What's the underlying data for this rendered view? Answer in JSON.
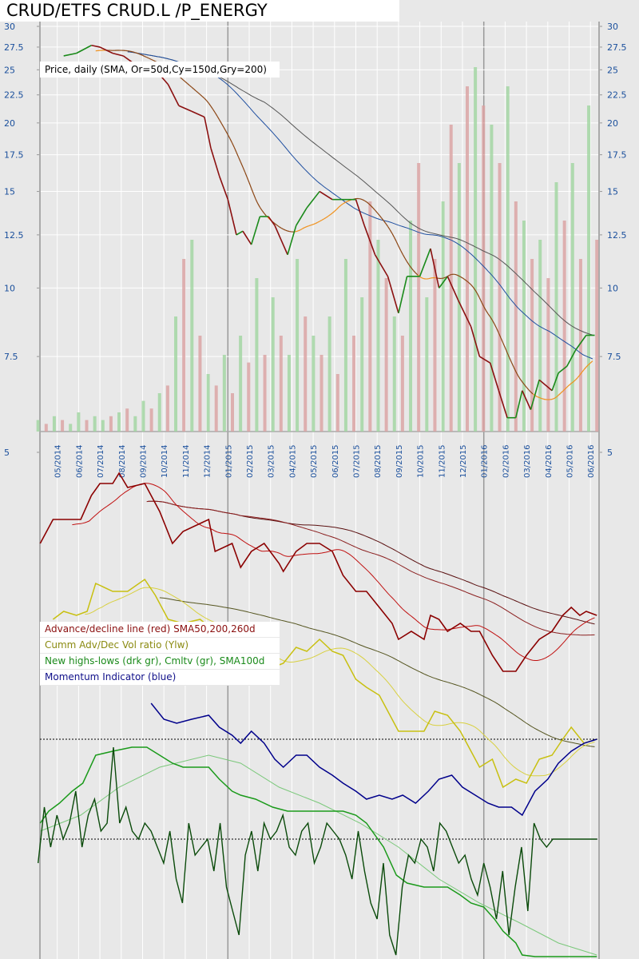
{
  "title": "CRUD/ETFS CRUD.L /P_ENERGY",
  "price_legend": "Price, daily (SMA, Or=50d,Cy=150d,Gry=200)",
  "lower_legend": [
    {
      "text": "Advance/decline line (red) SMA50,200,260d",
      "color": "#8b1010"
    },
    {
      "text": "Cumm Adv/Dec Vol ratio (Ylw)",
      "color": "#8a8a10"
    },
    {
      "text": "New highs-lows (drk gr), Cmltv (gr), SMA100d",
      "color": "#1a8a1a"
    },
    {
      "text": "Momentum Indicator (blue)",
      "color": "#10108a"
    }
  ],
  "colors": {
    "up": "#1a8a1a",
    "down": "#8b1010",
    "sma50_up": "#f0901a",
    "sma50_down": "#8b4513",
    "sma150": "#1f4fa0",
    "sma200": "#555555",
    "axis_text": "#1a4f9c",
    "ad": "#8b0000",
    "vol_ratio": "#c8c010",
    "hl": "#0a4a0a",
    "cum": "#1a9a1a",
    "cum_sma": "#7ac87a",
    "momentum": "#00008b"
  },
  "chart_data": {
    "type": "line",
    "title": "CRUD/ETFS CRUD.L /P_ENERGY",
    "x_unit": "months since 04/2014",
    "x_ticks": [
      "05/2014",
      "06/2014",
      "07/2014",
      "08/2014",
      "09/2014",
      "10/2014",
      "11/2014",
      "12/2014",
      "01/2015",
      "02/2015",
      "03/2015",
      "04/2015",
      "05/2015",
      "06/2015",
      "07/2015",
      "08/2015",
      "09/2015",
      "10/2015",
      "11/2015",
      "12/2015",
      "01/2016",
      "02/2016",
      "03/2016",
      "04/2016",
      "05/2016",
      "06/2016"
    ],
    "y_ticks_left": [
      "30",
      "27.5",
      "25",
      "22.5",
      "20",
      "17.5",
      "15",
      "12.5",
      "10",
      "7.5",
      "5"
    ],
    "y_ticks_right": [
      "30",
      "27.5",
      "25",
      "22.5",
      "20",
      "17.5",
      "15",
      "12.5",
      "10",
      "7.5",
      "5"
    ],
    "y_scale": "log",
    "ylim": [
      5,
      30
    ],
    "price": [
      [
        1.3,
        26.5
      ],
      [
        1.9,
        26.8
      ],
      [
        2.6,
        27.7
      ],
      [
        3.0,
        27.5
      ],
      [
        3.6,
        26.8
      ],
      [
        4.1,
        26.5
      ],
      [
        4.7,
        25.5
      ],
      [
        5.2,
        25
      ],
      [
        5.8,
        24.5
      ],
      [
        6.2,
        23.5
      ],
      [
        6.7,
        21.5
      ],
      [
        7.3,
        21
      ],
      [
        7.9,
        20.5
      ],
      [
        8.2,
        18
      ],
      [
        8.6,
        16
      ],
      [
        9.0,
        14.5
      ],
      [
        9.4,
        12.5
      ],
      [
        9.7,
        12.7
      ],
      [
        10.1,
        12
      ],
      [
        10.5,
        13.5
      ],
      [
        10.9,
        13.5
      ],
      [
        11.2,
        13
      ],
      [
        11.8,
        11.5
      ],
      [
        12.2,
        13
      ],
      [
        12.7,
        14
      ],
      [
        13.3,
        15
      ],
      [
        13.9,
        14.5
      ],
      [
        14.4,
        14.5
      ],
      [
        15.0,
        14.5
      ],
      [
        15.4,
        13
      ],
      [
        15.9,
        11.5
      ],
      [
        16.5,
        10.5
      ],
      [
        17.0,
        9
      ],
      [
        17.4,
        10.5
      ],
      [
        18.0,
        10.5
      ],
      [
        18.5,
        11.8
      ],
      [
        18.9,
        10
      ],
      [
        19.3,
        10.5
      ],
      [
        19.8,
        9.5
      ],
      [
        20.4,
        8.5
      ],
      [
        20.8,
        7.5
      ],
      [
        21.3,
        7.3
      ],
      [
        21.7,
        6.5
      ],
      [
        22.1,
        5.8
      ],
      [
        22.5,
        5.8
      ],
      [
        22.8,
        6.5
      ],
      [
        23.2,
        6
      ],
      [
        23.6,
        6.8
      ],
      [
        24.2,
        6.5
      ],
      [
        24.5,
        7
      ],
      [
        24.9,
        7.2
      ],
      [
        25.3,
        7.7
      ],
      [
        25.8,
        8.2
      ],
      [
        26.2,
        8.2
      ]
    ],
    "volume": [
      3,
      -2,
      4,
      -3,
      2,
      5,
      -3,
      4,
      3,
      -4,
      5,
      -6,
      4,
      8,
      -6,
      10,
      -12,
      30,
      -45,
      50,
      -25,
      15,
      -12,
      20,
      -10,
      25,
      -18,
      40,
      -20,
      35,
      -25,
      20,
      45,
      -30,
      25,
      -20,
      30,
      -15,
      45,
      -25,
      35,
      -60,
      50,
      -40,
      30,
      -25,
      55,
      -70,
      35,
      -45,
      60,
      -80,
      70,
      -90,
      95,
      -85,
      80,
      -70,
      90,
      -60,
      55,
      -45,
      50,
      -40,
      65,
      -55,
      70,
      -45,
      85,
      -50
    ],
    "lower_y_ticks": [
      "5"
    ],
    "advance_decline": [
      [
        0.2,
        42
      ],
      [
        0.8,
        45
      ],
      [
        1.3,
        45
      ],
      [
        2.1,
        45
      ],
      [
        2.6,
        48
      ],
      [
        3.0,
        49.5
      ],
      [
        3.6,
        49.5
      ],
      [
        3.9,
        50.8
      ],
      [
        4.3,
        49
      ],
      [
        5.1,
        49.5
      ],
      [
        5.8,
        46
      ],
      [
        6.4,
        42
      ],
      [
        6.9,
        43.5
      ],
      [
        7.7,
        44.5
      ],
      [
        8.1,
        45
      ],
      [
        8.4,
        41
      ],
      [
        9.2,
        42
      ],
      [
        9.6,
        39
      ],
      [
        10.1,
        41
      ],
      [
        10.7,
        42
      ],
      [
        11.4,
        39.5
      ],
      [
        11.6,
        38.5
      ],
      [
        12.2,
        41
      ],
      [
        12.7,
        42
      ],
      [
        13.3,
        42
      ],
      [
        13.9,
        41
      ],
      [
        14.4,
        38
      ],
      [
        15.0,
        36
      ],
      [
        15.5,
        36
      ],
      [
        16.1,
        34
      ],
      [
        16.7,
        32
      ],
      [
        17.0,
        30
      ],
      [
        17.6,
        31
      ],
      [
        18.2,
        30
      ],
      [
        18.5,
        33
      ],
      [
        18.9,
        32.5
      ],
      [
        19.3,
        31
      ],
      [
        19.9,
        32
      ],
      [
        20.4,
        31
      ],
      [
        20.8,
        31
      ],
      [
        21.4,
        28
      ],
      [
        21.9,
        26
      ],
      [
        22.5,
        26
      ],
      [
        23.0,
        28
      ],
      [
        23.6,
        30
      ],
      [
        24.2,
        31
      ],
      [
        24.7,
        33
      ],
      [
        25.1,
        34
      ],
      [
        25.5,
        33
      ],
      [
        25.8,
        33.5
      ],
      [
        26.3,
        33
      ]
    ],
    "vol_ratio": [
      [
        0.8,
        32.5
      ],
      [
        1.3,
        33.5
      ],
      [
        1.9,
        33
      ],
      [
        2.4,
        33.5
      ],
      [
        2.8,
        37
      ],
      [
        3.6,
        36
      ],
      [
        4.3,
        36
      ],
      [
        5.1,
        37.5
      ],
      [
        5.6,
        35.5
      ],
      [
        6.2,
        32.5
      ],
      [
        6.9,
        32
      ],
      [
        7.7,
        32.5
      ],
      [
        8.4,
        31
      ],
      [
        9.2,
        30
      ],
      [
        9.7,
        28
      ],
      [
        10.3,
        27
      ],
      [
        11.1,
        26.5
      ],
      [
        11.6,
        27
      ],
      [
        12.2,
        29
      ],
      [
        12.7,
        28.5
      ],
      [
        13.3,
        30
      ],
      [
        13.9,
        28.5
      ],
      [
        14.4,
        28
      ],
      [
        15.0,
        25
      ],
      [
        15.5,
        24
      ],
      [
        16.1,
        23
      ],
      [
        16.7,
        20
      ],
      [
        17.0,
        18.5
      ],
      [
        17.6,
        18.5
      ],
      [
        18.2,
        18.5
      ],
      [
        18.7,
        21
      ],
      [
        19.3,
        20.5
      ],
      [
        19.9,
        18.5
      ],
      [
        20.4,
        16
      ],
      [
        20.8,
        14
      ],
      [
        21.4,
        15
      ],
      [
        21.9,
        11.5
      ],
      [
        22.5,
        12.5
      ],
      [
        23.0,
        12
      ],
      [
        23.6,
        15
      ],
      [
        24.2,
        15.5
      ],
      [
        24.7,
        17.5
      ],
      [
        25.1,
        19
      ],
      [
        25.7,
        17
      ],
      [
        26.3,
        17.5
      ]
    ],
    "momentum": [
      [
        5.4,
        22
      ],
      [
        6.0,
        20
      ],
      [
        6.6,
        19.5
      ],
      [
        7.3,
        20
      ],
      [
        8.1,
        20.5
      ],
      [
        8.6,
        19
      ],
      [
        9.2,
        18
      ],
      [
        9.6,
        17
      ],
      [
        10.1,
        18.5
      ],
      [
        10.7,
        17
      ],
      [
        11.2,
        15
      ],
      [
        11.6,
        14
      ],
      [
        12.2,
        15.5
      ],
      [
        12.7,
        15.5
      ],
      [
        13.3,
        14
      ],
      [
        13.9,
        13
      ],
      [
        14.4,
        12
      ],
      [
        15.0,
        11
      ],
      [
        15.5,
        10
      ],
      [
        16.1,
        10.5
      ],
      [
        16.7,
        10
      ],
      [
        17.2,
        10.5
      ],
      [
        17.8,
        9.5
      ],
      [
        18.4,
        11
      ],
      [
        18.9,
        12.5
      ],
      [
        19.5,
        13
      ],
      [
        20.0,
        11.5
      ],
      [
        20.6,
        10.5
      ],
      [
        21.2,
        9.5
      ],
      [
        21.7,
        9
      ],
      [
        22.3,
        9
      ],
      [
        22.8,
        8
      ],
      [
        23.4,
        11
      ],
      [
        24.0,
        12.5
      ],
      [
        24.5,
        14.5
      ],
      [
        25.1,
        16
      ],
      [
        25.7,
        17
      ],
      [
        26.3,
        17.5
      ]
    ],
    "highs_lows": [
      -3,
      4,
      -1,
      3,
      0,
      2,
      6,
      -1,
      3,
      5,
      1,
      2,
      11.5,
      2,
      4,
      1,
      0,
      2,
      1,
      -1,
      -3,
      1,
      -5,
      -8,
      2,
      -2,
      -1,
      0,
      -4,
      2,
      -6,
      -9,
      -12,
      -2,
      1,
      -4,
      2,
      0,
      1,
      3,
      -1,
      -2,
      1,
      2,
      -3,
      -1,
      2,
      1,
      0,
      -2,
      -5,
      1,
      -4,
      -8,
      -10,
      -3,
      -12,
      -14.5,
      -6,
      -2,
      -3,
      0,
      -1,
      -4,
      2,
      1,
      -1,
      -3,
      -2,
      -5,
      -7,
      -3,
      -6,
      -10,
      -4,
      -12,
      -6,
      -1,
      -9,
      2,
      0,
      -1,
      0,
      0,
      0,
      0,
      0,
      0,
      0,
      0
    ],
    "cumulative_hl": [
      [
        0.2,
        7
      ],
      [
        0.6,
        8.5
      ],
      [
        1.1,
        9.5
      ],
      [
        1.7,
        11
      ],
      [
        2.2,
        12
      ],
      [
        2.8,
        15.5
      ],
      [
        3.6,
        16
      ],
      [
        4.5,
        16.5
      ],
      [
        5.2,
        16.5
      ],
      [
        5.8,
        15.5
      ],
      [
        6.4,
        14.5
      ],
      [
        6.9,
        14
      ],
      [
        8.1,
        14
      ],
      [
        8.6,
        12.5
      ],
      [
        9.2,
        11
      ],
      [
        9.6,
        10.5
      ],
      [
        10.3,
        10
      ],
      [
        11.1,
        9
      ],
      [
        11.8,
        8.5
      ],
      [
        13.3,
        8.5
      ],
      [
        14.4,
        8.5
      ],
      [
        15.0,
        8
      ],
      [
        15.5,
        7
      ],
      [
        16.3,
        4
      ],
      [
        16.9,
        0.5
      ],
      [
        17.4,
        -0.5
      ],
      [
        18.2,
        -1
      ],
      [
        19.3,
        -1
      ],
      [
        19.9,
        -2
      ],
      [
        20.4,
        -3
      ],
      [
        21.0,
        -3.5
      ],
      [
        21.5,
        -5
      ],
      [
        21.9,
        -6.5
      ],
      [
        22.5,
        -8
      ],
      [
        22.8,
        -9.5
      ],
      [
        23.4,
        -9.7
      ],
      [
        24.5,
        -9.7
      ],
      [
        26.3,
        -9.7
      ]
    ],
    "cumulative_hl_sma100": [
      [
        0.2,
        6
      ],
      [
        2.1,
        8
      ],
      [
        3.9,
        11.5
      ],
      [
        5.8,
        14
      ],
      [
        8.1,
        15.5
      ],
      [
        9.6,
        14.5
      ],
      [
        11.4,
        11.5
      ],
      [
        13.3,
        9.5
      ],
      [
        15.2,
        7
      ],
      [
        17.0,
        4
      ],
      [
        18.9,
        0
      ],
      [
        20.8,
        -3
      ],
      [
        22.7,
        -5.5
      ],
      [
        24.5,
        -8
      ],
      [
        26.3,
        -9.5
      ]
    ]
  }
}
